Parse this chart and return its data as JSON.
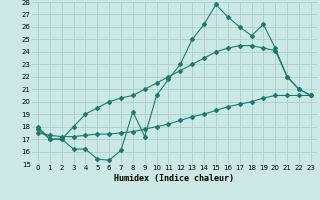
{
  "xlabel": "Humidex (Indice chaleur)",
  "bg_color": "#cce8e4",
  "grid_color": "#aad0cc",
  "line_color": "#1a7a6e",
  "xlim": [
    -0.5,
    23.5
  ],
  "ylim": [
    15,
    28
  ],
  "xticks": [
    0,
    1,
    2,
    3,
    4,
    5,
    6,
    7,
    8,
    9,
    10,
    11,
    12,
    13,
    14,
    15,
    16,
    17,
    18,
    19,
    20,
    21,
    22,
    23
  ],
  "yticks": [
    15,
    16,
    17,
    18,
    19,
    20,
    21,
    22,
    23,
    24,
    25,
    26,
    27,
    28
  ],
  "line1_x": [
    0,
    1,
    2,
    3,
    4,
    5,
    6,
    7,
    8,
    9,
    10,
    11,
    12,
    13,
    14,
    15,
    16,
    17,
    18,
    19,
    20,
    21,
    22,
    23
  ],
  "line1_y": [
    18,
    17,
    17,
    16.2,
    16.2,
    15.4,
    15.3,
    16.1,
    19.2,
    17.2,
    20.5,
    21.8,
    23.0,
    25.0,
    26.2,
    27.8,
    26.8,
    26.0,
    25.3,
    26.2,
    24.3,
    22.0,
    21.0,
    20.5
  ],
  "line2_x": [
    0,
    1,
    2,
    3,
    4,
    5,
    6,
    7,
    8,
    9,
    10,
    11,
    12,
    13,
    14,
    15,
    16,
    17,
    18,
    19,
    20,
    21,
    22,
    23
  ],
  "line2_y": [
    17.8,
    17.0,
    17.0,
    18.0,
    19.0,
    19.5,
    20.0,
    20.3,
    20.5,
    21.0,
    21.5,
    22.0,
    22.5,
    23.0,
    23.5,
    24.0,
    24.3,
    24.5,
    24.5,
    24.3,
    24.1,
    22.0,
    21.0,
    20.5
  ],
  "line3_x": [
    0,
    1,
    2,
    3,
    4,
    5,
    6,
    7,
    8,
    9,
    10,
    11,
    12,
    13,
    14,
    15,
    16,
    17,
    18,
    19,
    20,
    21,
    22,
    23
  ],
  "line3_y": [
    17.5,
    17.3,
    17.2,
    17.2,
    17.3,
    17.4,
    17.4,
    17.5,
    17.6,
    17.8,
    18.0,
    18.2,
    18.5,
    18.8,
    19.0,
    19.3,
    19.6,
    19.8,
    20.0,
    20.3,
    20.5,
    20.5,
    20.5,
    20.5
  ]
}
